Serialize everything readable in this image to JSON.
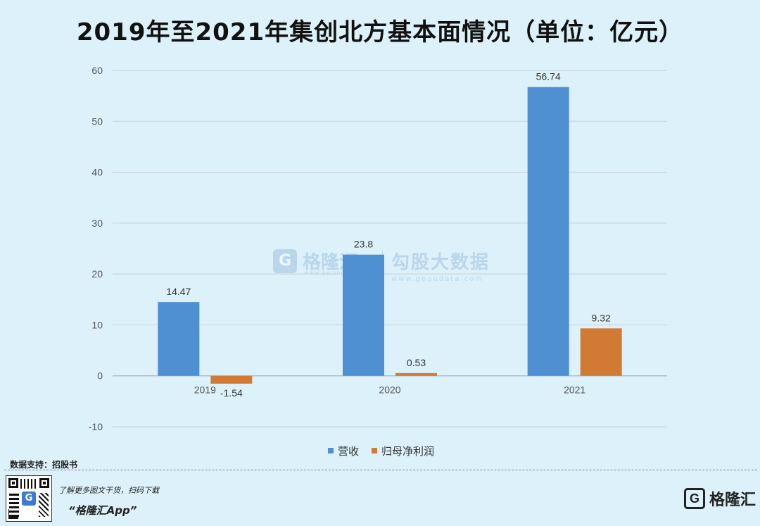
{
  "title": "2019年至2021年集创北方基本面情况（单位：亿元）",
  "chart_data": {
    "type": "bar",
    "categories": [
      "2019",
      "2020",
      "2021"
    ],
    "series": [
      {
        "name": "营收",
        "values": [
          14.47,
          23.8,
          56.74
        ],
        "labels": [
          "14.47",
          "23.8",
          "56.74"
        ],
        "color": "#4f90d2"
      },
      {
        "name": "归母净利润",
        "values": [
          -1.54,
          0.53,
          9.32
        ],
        "labels": [
          "-1.54",
          "0.53",
          "9.32"
        ],
        "color": "#d17a34"
      }
    ],
    "ylim": [
      -10,
      60
    ],
    "yticks": [
      -10,
      0,
      10,
      20,
      30,
      40,
      50,
      60
    ],
    "grid": true,
    "legend": "bottom-center"
  },
  "legend": {
    "item1": "营收",
    "item2": "归母净利润"
  },
  "source": "数据支持：招股书",
  "watermark": {
    "brand": "格隆汇",
    "brand_sub": "www.gelonghui.com",
    "partner": "勾股大数据",
    "partner_sub": "www.gogudata.com"
  },
  "footer": {
    "promo_line": "了解更多图文干货，扫码下载",
    "app_name": "“格隆汇App”",
    "brand": "格隆汇",
    "brand_icon": "G"
  },
  "qr": {
    "icon": "G"
  }
}
